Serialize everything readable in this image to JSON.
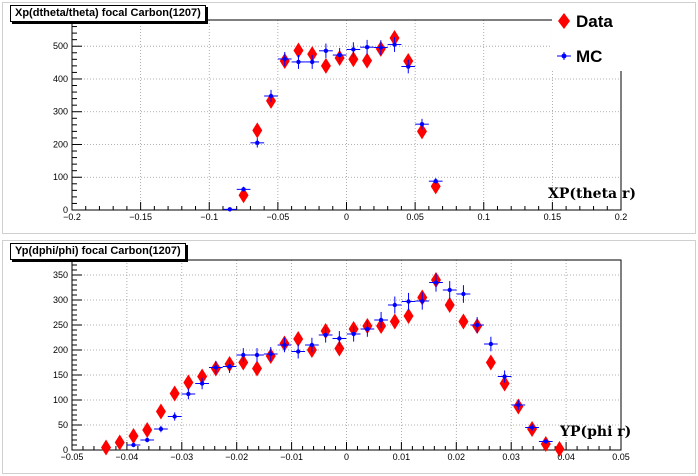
{
  "chart_data": [
    {
      "type": "scatter",
      "title": "Xp(dtheta/theta) focal Carbon(1207)",
      "xlabel": "XP(theta r)",
      "ylabel": "",
      "xlim": [
        -0.2,
        0.2
      ],
      "ylim": [
        0,
        580
      ],
      "xticks": [
        "−0.2",
        "−0.15",
        "−0.1",
        "−0.05",
        "0",
        "0.05",
        "0.1",
        "0.15",
        "0.2"
      ],
      "yticks": [
        "0",
        "100",
        "200",
        "300",
        "400",
        "500"
      ],
      "grid": true,
      "legend": "top-right",
      "series": [
        {
          "name": "Data",
          "color": "#ff0000",
          "marker": "diamond",
          "x": [
            -0.075,
            -0.065,
            -0.055,
            -0.045,
            -0.035,
            -0.025,
            -0.015,
            -0.005,
            0.005,
            0.015,
            0.025,
            0.035,
            0.045,
            0.055,
            0.065
          ],
          "y": [
            45,
            243,
            333,
            455,
            487,
            476,
            440,
            464,
            460,
            456,
            492,
            525,
            455,
            240,
            72
          ]
        },
        {
          "name": "MC",
          "color": "#0000ff",
          "marker": "cross",
          "x": [
            -0.085,
            -0.075,
            -0.065,
            -0.055,
            -0.045,
            -0.035,
            -0.025,
            -0.015,
            -0.005,
            0.005,
            0.015,
            0.025,
            0.035,
            0.045,
            0.055,
            0.065
          ],
          "y": [
            2,
            63,
            205,
            348,
            461,
            452,
            452,
            486,
            473,
            490,
            497,
            496,
            505,
            438,
            262,
            88
          ]
        }
      ]
    },
    {
      "type": "scatter",
      "title": "Yp(dphi/phi) focal Carbon(1207)",
      "xlabel": "YP(phi r)",
      "ylabel": "",
      "xlim": [
        -0.05,
        0.05
      ],
      "ylim": [
        0,
        380
      ],
      "xticks": [
        "−0.05",
        "−0.04",
        "−0.03",
        "−0.02",
        "−0.01",
        "0",
        "0.01",
        "0.02",
        "0.03",
        "0.04",
        "0.05"
      ],
      "yticks": [
        "0",
        "50",
        "100",
        "150",
        "200",
        "250",
        "300",
        "350"
      ],
      "grid": true,
      "series": [
        {
          "name": "Data",
          "color": "#ff0000",
          "marker": "diamond",
          "x": [
            -0.0438,
            -0.0413,
            -0.0388,
            -0.0363,
            -0.0338,
            -0.0313,
            -0.0288,
            -0.0263,
            -0.0238,
            -0.0213,
            -0.0188,
            -0.0163,
            -0.0138,
            -0.0113,
            -0.0088,
            -0.0063,
            -0.0038,
            -0.0013,
            0.0013,
            0.0038,
            0.0063,
            0.0088,
            0.0113,
            0.0138,
            0.0163,
            0.0188,
            0.0213,
            0.0238,
            0.0263,
            0.0288,
            0.0313,
            0.0338,
            0.0363,
            0.0388
          ],
          "y": [
            5,
            15,
            28,
            40,
            77,
            113,
            135,
            147,
            163,
            172,
            175,
            163,
            188,
            213,
            222,
            200,
            238,
            203,
            242,
            248,
            248,
            257,
            268,
            305,
            340,
            290,
            257,
            248,
            175,
            133,
            87,
            42,
            12,
            2
          ]
        },
        {
          "name": "MC",
          "color": "#0000ff",
          "marker": "cross",
          "x": [
            -0.0388,
            -0.0363,
            -0.0338,
            -0.0313,
            -0.0288,
            -0.0263,
            -0.0238,
            -0.0213,
            -0.0188,
            -0.0163,
            -0.0138,
            -0.0113,
            -0.0088,
            -0.0063,
            -0.0038,
            -0.0013,
            0.0013,
            0.0038,
            0.0063,
            0.0088,
            0.0113,
            0.0138,
            0.0163,
            0.0188,
            0.0213,
            0.0238,
            0.0263,
            0.0288,
            0.0313,
            0.0338,
            0.0363
          ],
          "y": [
            10,
            20,
            42,
            67,
            112,
            133,
            165,
            167,
            190,
            190,
            192,
            210,
            197,
            210,
            230,
            223,
            232,
            242,
            260,
            290,
            297,
            298,
            335,
            320,
            312,
            250,
            212,
            147,
            90,
            45,
            17
          ]
        }
      ]
    }
  ]
}
